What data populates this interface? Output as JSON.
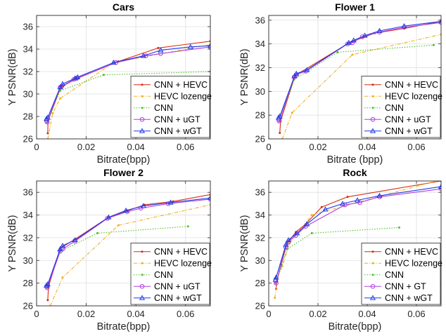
{
  "colors": {
    "cnn_hevc": "#d62a10",
    "hevc_lozenge": "#edb120",
    "cnn": "#4dbf2a",
    "cnn_ugt": "#b040e0",
    "cnn_wgt": "#1c3ae8"
  },
  "chart_data": [
    {
      "type": "line",
      "title": "Cars",
      "xlabel": "Bitrate(bpp)",
      "ylabel": "Y PSNR(dB)",
      "xlim": [
        0,
        0.07
      ],
      "ylim": [
        26,
        37
      ],
      "xticks": [
        0,
        0.02,
        0.04,
        0.06
      ],
      "xtick_labels": [
        "0",
        "0.02",
        "0.04",
        "0.06"
      ],
      "yticks": [
        26,
        28,
        30,
        32,
        34,
        36
      ],
      "ytick_labels": [
        "26",
        "28",
        "30",
        "32",
        "34",
        "36"
      ],
      "grid": true,
      "legend_position": "bottom-right",
      "series": [
        {
          "name": "CNN + HEVC",
          "color_key": "cnn_hevc",
          "style": "solid",
          "marker": "dot",
          "x": [
            0.0045,
            0.0046,
            0.0095,
            0.0105,
            0.0155,
            0.0165,
            0.033,
            0.049,
            0.07
          ],
          "y": [
            26.5,
            27.6,
            30.5,
            30.7,
            31.3,
            31.4,
            32.9,
            34.1,
            34.7
          ]
        },
        {
          "name": "HEVC lozenge",
          "color_key": "hevc_lozenge",
          "style": "dashdot",
          "marker": "dot",
          "x": [
            0.0045,
            0.0065,
            0.0095,
            0.031,
            0.07
          ],
          "y": [
            26.0,
            28.3,
            29.6,
            32.8,
            34.4
          ]
        },
        {
          "name": "CNN",
          "color_key": "cnn",
          "style": "dotted",
          "marker": "dot",
          "x": [
            0.0043,
            0.0095,
            0.027,
            0.07
          ],
          "y": [
            27.5,
            30.3,
            31.7,
            32.0
          ]
        },
        {
          "name": "CNN + uGT",
          "color_key": "cnn_ugt",
          "style": "solid",
          "marker": "circle",
          "x": [
            0.004,
            0.0043,
            0.0095,
            0.0102,
            0.015,
            0.0162,
            0.032,
            0.044,
            0.05,
            0.07
          ],
          "y": [
            27.6,
            27.5,
            30.6,
            30.7,
            31.3,
            31.4,
            32.8,
            33.4,
            33.6,
            34.2
          ]
        },
        {
          "name": "CNN + wGT",
          "color_key": "cnn_wgt",
          "style": "solid",
          "marker": "triangle",
          "x": [
            0.004,
            0.0045,
            0.0095,
            0.0105,
            0.0155,
            0.0165,
            0.031,
            0.043,
            0.05,
            0.062,
            0.07
          ],
          "y": [
            27.8,
            27.9,
            30.6,
            30.9,
            31.4,
            31.5,
            32.8,
            33.4,
            33.9,
            34.2,
            34.3
          ]
        }
      ]
    },
    {
      "type": "line",
      "title": "Flower 1",
      "xlabel": "Bitrate (bpp)",
      "ylabel": "Y PSNR(dB)",
      "xlim": [
        0,
        0.07
      ],
      "ylim": [
        26,
        36.4
      ],
      "xticks": [
        0,
        0.02,
        0.04,
        0.06
      ],
      "xtick_labels": [
        "0",
        "0.02",
        "0.04",
        "0.06"
      ],
      "yticks": [
        26,
        28,
        30,
        32,
        34,
        36
      ],
      "ytick_labels": [
        "26",
        "28",
        "30",
        "32",
        "34",
        "36"
      ],
      "grid": true,
      "legend_position": "bottom-right",
      "series": [
        {
          "name": "CNN + HEVC",
          "color_key": "cnn_hevc",
          "style": "solid",
          "marker": "dot",
          "x": [
            0.0045,
            0.0048,
            0.0105,
            0.0112,
            0.032,
            0.034,
            0.043,
            0.055,
            0.07
          ],
          "y": [
            26.5,
            27.5,
            31.2,
            31.4,
            34.0,
            34.2,
            34.9,
            35.3,
            35.9
          ]
        },
        {
          "name": "HEVC lozenge",
          "color_key": "hevc_lozenge",
          "style": "dashdot",
          "marker": "dot",
          "x": [
            0.0055,
            0.0095,
            0.034,
            0.07
          ],
          "y": [
            26.0,
            28.2,
            33.1,
            34.8
          ]
        },
        {
          "name": "CNN",
          "color_key": "cnn",
          "style": "dotted",
          "marker": "dot",
          "x": [
            0.0043,
            0.0103,
            0.028,
            0.067
          ],
          "y": [
            27.5,
            31.0,
            33.3,
            33.9
          ]
        },
        {
          "name": "CNN + uGT",
          "color_key": "cnn_ugt",
          "style": "solid",
          "marker": "circle",
          "x": [
            0.004,
            0.0043,
            0.0103,
            0.0112,
            0.015,
            0.032,
            0.034,
            0.038,
            0.045,
            0.055,
            0.07
          ],
          "y": [
            27.6,
            27.5,
            31.2,
            31.4,
            31.7,
            34.0,
            34.1,
            34.6,
            35.0,
            35.4,
            35.8
          ]
        },
        {
          "name": "CNN + wGT",
          "color_key": "cnn_wgt",
          "style": "solid",
          "marker": "triangle",
          "x": [
            0.004,
            0.0045,
            0.0105,
            0.0112,
            0.0155,
            0.0325,
            0.0345,
            0.039,
            0.045,
            0.055,
            0.07
          ],
          "y": [
            27.8,
            27.9,
            31.3,
            31.5,
            31.8,
            34.1,
            34.3,
            34.7,
            35.1,
            35.5,
            35.9
          ]
        }
      ]
    },
    {
      "type": "line",
      "title": "Flower 2",
      "xlabel": "Bitrate(bpp)",
      "ylabel": "Y PSNR(dB)",
      "xlim": [
        0,
        0.07
      ],
      "ylim": [
        26,
        37
      ],
      "xticks": [
        0,
        0.02,
        0.04,
        0.06
      ],
      "xtick_labels": [
        "0",
        "0.02",
        "0.04",
        "0.06"
      ],
      "yticks": [
        26,
        28,
        30,
        32,
        34,
        36
      ],
      "ytick_labels": [
        "26",
        "28",
        "30",
        "32",
        "34",
        "36"
      ],
      "grid": true,
      "legend_position": "bottom-right",
      "series": [
        {
          "name": "CNN + HEVC",
          "color_key": "cnn_hevc",
          "style": "solid",
          "marker": "dot",
          "x": [
            0.0045,
            0.0048,
            0.0095,
            0.0105,
            0.015,
            0.029,
            0.0435,
            0.055,
            0.07
          ],
          "y": [
            26.5,
            27.7,
            31.0,
            31.2,
            31.8,
            33.8,
            34.9,
            35.2,
            35.8
          ]
        },
        {
          "name": "HEVC lozenge",
          "color_key": "hevc_lozenge",
          "style": "dashdot",
          "marker": "dot",
          "x": [
            0.0055,
            0.0105,
            0.033,
            0.07
          ],
          "y": [
            26.0,
            28.5,
            33.1,
            34.9
          ]
        },
        {
          "name": "CNN",
          "color_key": "cnn",
          "style": "dotted",
          "marker": "dot",
          "x": [
            0.0043,
            0.0095,
            0.0245,
            0.061
          ],
          "y": [
            27.6,
            30.8,
            32.4,
            33.0
          ]
        },
        {
          "name": "CNN + uGT",
          "color_key": "cnn_ugt",
          "style": "solid",
          "marker": "circle",
          "x": [
            0.004,
            0.0043,
            0.0095,
            0.0105,
            0.0155,
            0.0285,
            0.0365,
            0.042,
            0.053,
            0.07
          ],
          "y": [
            27.7,
            27.6,
            30.8,
            31.0,
            31.7,
            33.7,
            34.3,
            34.6,
            35.0,
            35.4
          ]
        },
        {
          "name": "CNN + wGT",
          "color_key": "cnn_wgt",
          "style": "solid",
          "marker": "triangle",
          "x": [
            0.004,
            0.0045,
            0.0095,
            0.0105,
            0.0155,
            0.029,
            0.036,
            0.043,
            0.054,
            0.07
          ],
          "y": [
            27.8,
            27.9,
            31.0,
            31.3,
            31.8,
            33.8,
            34.4,
            34.8,
            35.1,
            35.5
          ]
        }
      ]
    },
    {
      "type": "line",
      "title": "Rock",
      "xlabel": "Bitrate(bpp)",
      "ylabel": "Y PSNR(dB)",
      "xlim": [
        0,
        0.07
      ],
      "ylim": [
        26,
        37
      ],
      "xticks": [
        0,
        0.02,
        0.04,
        0.06
      ],
      "xtick_labels": [
        "0",
        "0.02",
        "0.04",
        "0.06"
      ],
      "yticks": [
        26,
        28,
        30,
        32,
        34,
        36
      ],
      "ytick_labels": [
        "26",
        "28",
        "30",
        "32",
        "34",
        "36"
      ],
      "grid": true,
      "legend_position": "bottom-right",
      "series": [
        {
          "name": "CNN + HEVC",
          "color_key": "cnn_hevc",
          "style": "solid",
          "marker": "dot",
          "x": [
            0.003,
            0.0032,
            0.005,
            0.0072,
            0.0082,
            0.011,
            0.015,
            0.0215,
            0.032,
            0.07
          ],
          "y": [
            27.5,
            28.1,
            29.6,
            31.3,
            31.7,
            32.5,
            33.2,
            34.7,
            35.6,
            37.0
          ]
        },
        {
          "name": "HEVC lozenge",
          "color_key": "hevc_lozenge",
          "style": "dashdot",
          "marker": "dot",
          "x": [
            0.0025,
            0.0035,
            0.0055,
            0.0085,
            0.0175,
            0.068
          ],
          "y": [
            26.7,
            28.4,
            29.5,
            31.5,
            34.0,
            37.0
          ]
        },
        {
          "name": "CNN",
          "color_key": "cnn",
          "style": "dotted",
          "marker": "dot",
          "x": [
            0.0028,
            0.0075,
            0.0175,
            0.053
          ],
          "y": [
            28.0,
            31.0,
            32.4,
            32.9
          ]
        },
        {
          "name": "CNN + GT",
          "color_key": "cnn_ugt",
          "style": "solid",
          "marker": "circle",
          "x": [
            0.0028,
            0.003,
            0.0068,
            0.0078,
            0.011,
            0.015,
            0.031,
            0.037,
            0.045,
            0.07
          ],
          "y": [
            28.2,
            28.0,
            31.2,
            31.6,
            32.2,
            33.0,
            34.9,
            35.1,
            35.6,
            36.3
          ]
        },
        {
          "name": "CNN + wGT",
          "color_key": "cnn_wgt",
          "style": "solid",
          "marker": "triangle",
          "x": [
            0.0028,
            0.003,
            0.007,
            0.008,
            0.0115,
            0.0155,
            0.023,
            0.03,
            0.036,
            0.045,
            0.07
          ],
          "y": [
            28.3,
            28.5,
            31.4,
            31.8,
            32.4,
            33.2,
            34.5,
            35.0,
            35.3,
            35.7,
            36.5
          ]
        }
      ]
    }
  ]
}
